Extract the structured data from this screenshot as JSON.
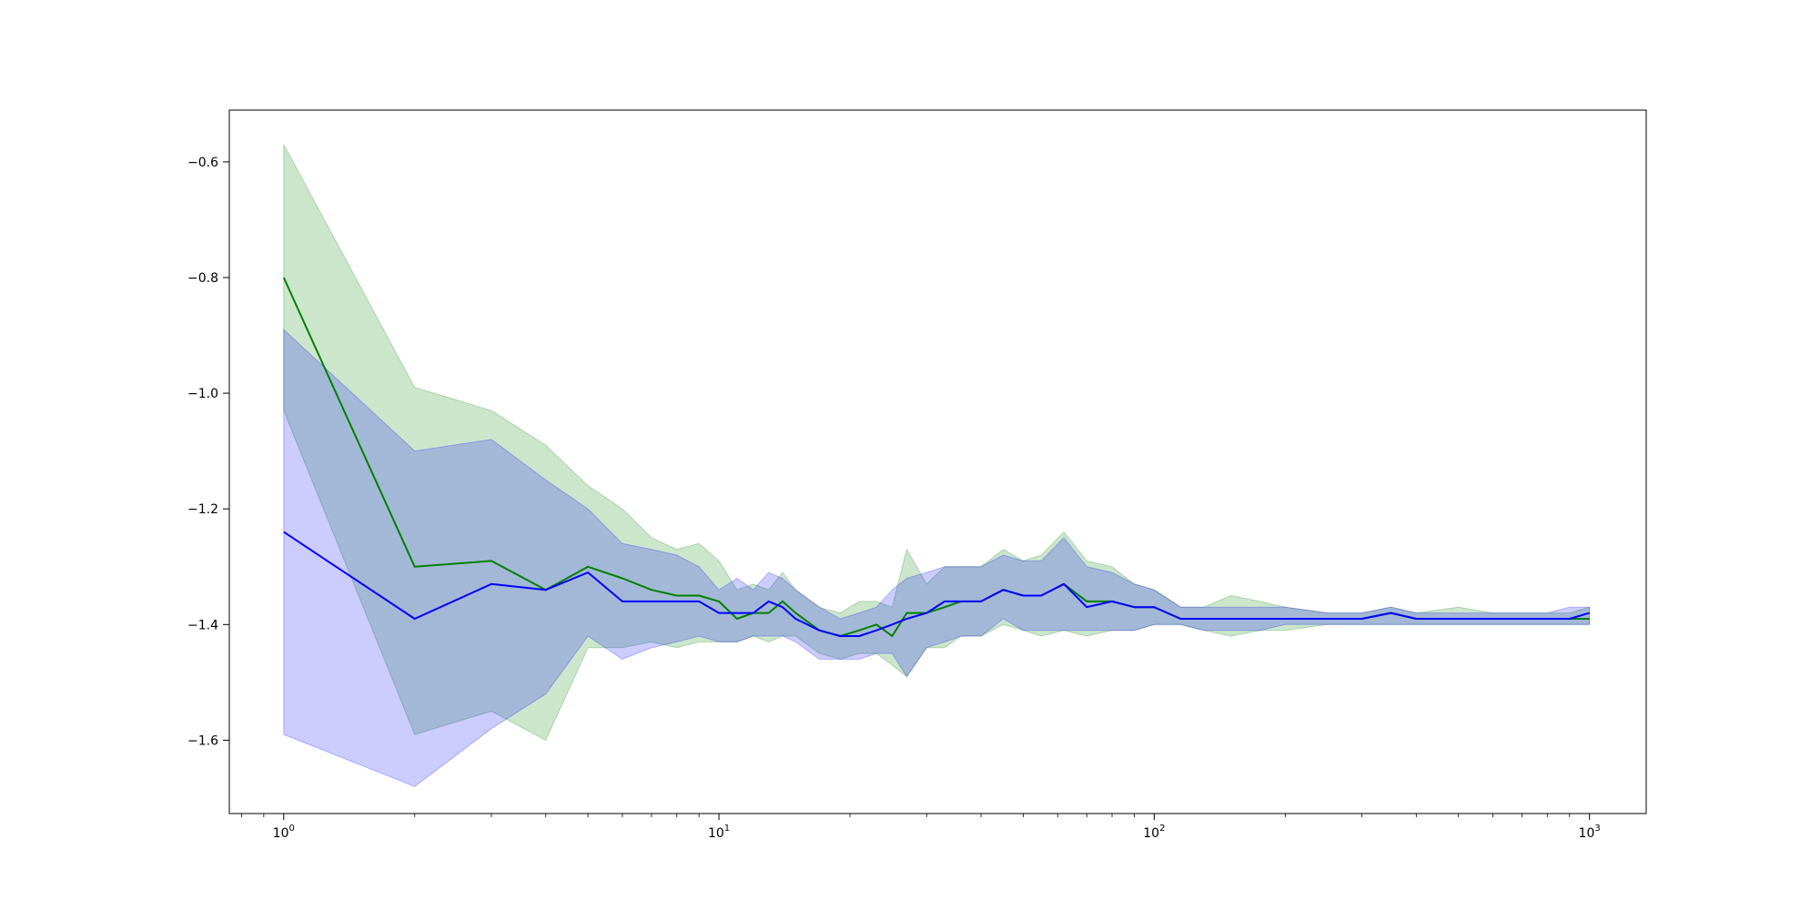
{
  "chart_data": {
    "type": "line",
    "title": "",
    "xlabel": "",
    "ylabel": "",
    "xscale": "log",
    "xlim": [
      0.75,
      1350
    ],
    "ylim": [
      -1.7268,
      -0.5105
    ],
    "grid": false,
    "legend": "none",
    "x_ticks": [
      {
        "value": 1,
        "base": "10",
        "exp": "0"
      },
      {
        "value": 10,
        "base": "10",
        "exp": "1"
      },
      {
        "value": 100,
        "base": "10",
        "exp": "2"
      },
      {
        "value": 1000,
        "base": "10",
        "exp": "3"
      }
    ],
    "y_ticks": [
      {
        "value": -0.6,
        "label": "−0.6"
      },
      {
        "value": -0.8,
        "label": "−0.8"
      },
      {
        "value": -1.0,
        "label": "−1.0"
      },
      {
        "value": -1.2,
        "label": "−1.2"
      },
      {
        "value": -1.4,
        "label": "−1.4"
      },
      {
        "value": -1.6,
        "label": "−1.6"
      }
    ],
    "series": [
      {
        "color": "#008000",
        "band_color": "#008000",
        "band_opacity": 0.2,
        "points": [
          [
            1,
            -0.8,
            -0.57,
            -1.03
          ],
          [
            2,
            -1.3,
            -0.99,
            -1.59
          ],
          [
            3,
            -1.29,
            -1.03,
            -1.55
          ],
          [
            4,
            -1.34,
            -1.09,
            -1.6
          ],
          [
            5,
            -1.3,
            -1.16,
            -1.44
          ],
          [
            6,
            -1.32,
            -1.2,
            -1.44
          ],
          [
            7,
            -1.34,
            -1.25,
            -1.43
          ],
          [
            8,
            -1.35,
            -1.27,
            -1.44
          ],
          [
            9,
            -1.35,
            -1.26,
            -1.43
          ],
          [
            10,
            -1.36,
            -1.29,
            -1.43
          ],
          [
            11,
            -1.39,
            -1.34,
            -1.43
          ],
          [
            12,
            -1.38,
            -1.33,
            -1.42
          ],
          [
            13,
            -1.38,
            -1.34,
            -1.43
          ],
          [
            14,
            -1.36,
            -1.31,
            -1.42
          ],
          [
            15,
            -1.38,
            -1.34,
            -1.42
          ],
          [
            17,
            -1.41,
            -1.37,
            -1.45
          ],
          [
            19,
            -1.42,
            -1.38,
            -1.46
          ],
          [
            21,
            -1.41,
            -1.36,
            -1.45
          ],
          [
            23,
            -1.4,
            -1.36,
            -1.45
          ],
          [
            25,
            -1.42,
            -1.37,
            -1.47
          ],
          [
            27,
            -1.38,
            -1.27,
            -1.49
          ],
          [
            30,
            -1.38,
            -1.33,
            -1.44
          ],
          [
            33,
            -1.37,
            -1.3,
            -1.44
          ],
          [
            36,
            -1.36,
            -1.3,
            -1.42
          ],
          [
            40,
            -1.36,
            -1.3,
            -1.42
          ],
          [
            45,
            -1.34,
            -1.27,
            -1.4
          ],
          [
            50,
            -1.35,
            -1.29,
            -1.41
          ],
          [
            55,
            -1.35,
            -1.28,
            -1.42
          ],
          [
            62,
            -1.33,
            -1.24,
            -1.41
          ],
          [
            70,
            -1.36,
            -1.29,
            -1.42
          ],
          [
            80,
            -1.36,
            -1.3,
            -1.41
          ],
          [
            90,
            -1.37,
            -1.33,
            -1.41
          ],
          [
            100,
            -1.37,
            -1.34,
            -1.4
          ],
          [
            115,
            -1.39,
            -1.37,
            -1.4
          ],
          [
            130,
            -1.39,
            -1.37,
            -1.41
          ],
          [
            150,
            -1.39,
            -1.35,
            -1.42
          ],
          [
            175,
            -1.39,
            -1.36,
            -1.41
          ],
          [
            200,
            -1.39,
            -1.37,
            -1.41
          ],
          [
            250,
            -1.39,
            -1.38,
            -1.4
          ],
          [
            300,
            -1.39,
            -1.38,
            -1.4
          ],
          [
            350,
            -1.38,
            -1.37,
            -1.4
          ],
          [
            400,
            -1.39,
            -1.38,
            -1.4
          ],
          [
            500,
            -1.39,
            -1.37,
            -1.4
          ],
          [
            600,
            -1.39,
            -1.38,
            -1.4
          ],
          [
            700,
            -1.39,
            -1.38,
            -1.4
          ],
          [
            800,
            -1.39,
            -1.38,
            -1.4
          ],
          [
            900,
            -1.39,
            -1.38,
            -1.4
          ],
          [
            1000,
            -1.39,
            -1.37,
            -1.4
          ]
        ]
      },
      {
        "color": "#0000ff",
        "band_color": "#0000ff",
        "band_opacity": 0.2,
        "points": [
          [
            1,
            -1.24,
            -0.89,
            -1.59
          ],
          [
            2,
            -1.39,
            -1.1,
            -1.68
          ],
          [
            3,
            -1.33,
            -1.08,
            -1.58
          ],
          [
            4,
            -1.34,
            -1.15,
            -1.52
          ],
          [
            5,
            -1.31,
            -1.2,
            -1.42
          ],
          [
            6,
            -1.36,
            -1.26,
            -1.46
          ],
          [
            7,
            -1.36,
            -1.27,
            -1.44
          ],
          [
            8,
            -1.36,
            -1.28,
            -1.43
          ],
          [
            9,
            -1.36,
            -1.3,
            -1.42
          ],
          [
            10,
            -1.38,
            -1.34,
            -1.43
          ],
          [
            11,
            -1.38,
            -1.32,
            -1.43
          ],
          [
            12,
            -1.38,
            -1.34,
            -1.42
          ],
          [
            13,
            -1.36,
            -1.31,
            -1.42
          ],
          [
            14,
            -1.37,
            -1.32,
            -1.42
          ],
          [
            15,
            -1.39,
            -1.34,
            -1.43
          ],
          [
            17,
            -1.41,
            -1.37,
            -1.46
          ],
          [
            19,
            -1.42,
            -1.39,
            -1.46
          ],
          [
            21,
            -1.42,
            -1.38,
            -1.46
          ],
          [
            23,
            -1.41,
            -1.37,
            -1.45
          ],
          [
            25,
            -1.4,
            -1.34,
            -1.45
          ],
          [
            27,
            -1.39,
            -1.32,
            -1.49
          ],
          [
            30,
            -1.38,
            -1.31,
            -1.44
          ],
          [
            33,
            -1.36,
            -1.3,
            -1.43
          ],
          [
            36,
            -1.36,
            -1.3,
            -1.42
          ],
          [
            40,
            -1.36,
            -1.3,
            -1.42
          ],
          [
            45,
            -1.34,
            -1.28,
            -1.39
          ],
          [
            50,
            -1.35,
            -1.29,
            -1.41
          ],
          [
            55,
            -1.35,
            -1.29,
            -1.41
          ],
          [
            62,
            -1.33,
            -1.25,
            -1.41
          ],
          [
            70,
            -1.37,
            -1.3,
            -1.41
          ],
          [
            80,
            -1.36,
            -1.31,
            -1.41
          ],
          [
            90,
            -1.37,
            -1.33,
            -1.41
          ],
          [
            100,
            -1.37,
            -1.34,
            -1.4
          ],
          [
            115,
            -1.39,
            -1.37,
            -1.4
          ],
          [
            130,
            -1.39,
            -1.37,
            -1.41
          ],
          [
            150,
            -1.39,
            -1.37,
            -1.41
          ],
          [
            175,
            -1.39,
            -1.37,
            -1.41
          ],
          [
            200,
            -1.39,
            -1.37,
            -1.4
          ],
          [
            250,
            -1.39,
            -1.38,
            -1.4
          ],
          [
            300,
            -1.39,
            -1.38,
            -1.4
          ],
          [
            350,
            -1.38,
            -1.37,
            -1.4
          ],
          [
            400,
            -1.39,
            -1.38,
            -1.4
          ],
          [
            500,
            -1.39,
            -1.38,
            -1.4
          ],
          [
            600,
            -1.39,
            -1.38,
            -1.4
          ],
          [
            700,
            -1.39,
            -1.38,
            -1.4
          ],
          [
            800,
            -1.39,
            -1.38,
            -1.4
          ],
          [
            900,
            -1.39,
            -1.37,
            -1.4
          ],
          [
            1000,
            -1.38,
            -1.37,
            -1.4
          ]
        ]
      }
    ]
  }
}
